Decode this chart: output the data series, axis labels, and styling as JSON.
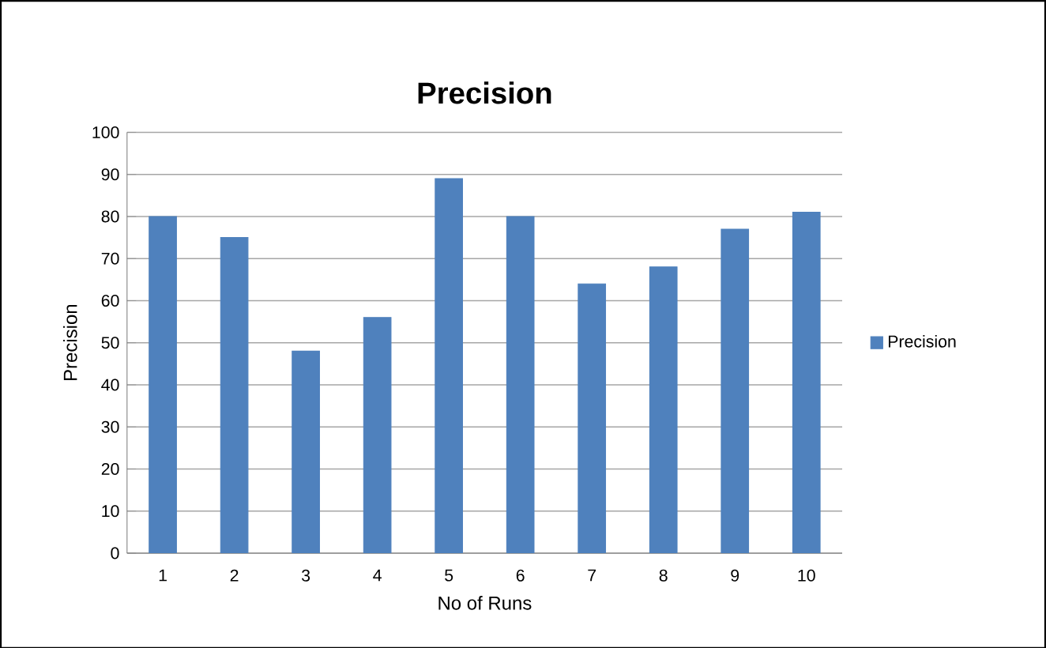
{
  "chart_data": {
    "type": "bar",
    "title": "Precision",
    "xlabel": "No of Runs",
    "ylabel": "Precision",
    "categories": [
      "1",
      "2",
      "3",
      "4",
      "5",
      "6",
      "7",
      "8",
      "9",
      "10"
    ],
    "series": [
      {
        "name": "Precision",
        "color": "#4f81bd",
        "values": [
          80,
          75,
          48,
          56,
          89,
          80,
          64,
          68,
          77,
          81
        ]
      }
    ],
    "ylim": [
      0,
      100
    ],
    "yticks": [
      0,
      10,
      20,
      30,
      40,
      50,
      60,
      70,
      80,
      90,
      100
    ],
    "grid": "y",
    "legend": "right"
  }
}
